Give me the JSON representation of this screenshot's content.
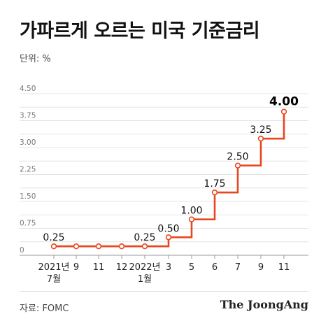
{
  "title": "가파르게 오르는 미국 기준금리",
  "unit_label": "단위: %",
  "source": "자료: FOMC",
  "brand": "The JoongAng",
  "chart_data": {
    "type": "line",
    "step": true,
    "x": [
      "2021년 7월",
      "9",
      "11",
      "12",
      "2022년 1월",
      "3",
      "5",
      "6",
      "7",
      "9",
      "11"
    ],
    "x_tick_lines": [
      [
        "2021년",
        "7월"
      ],
      [
        "9"
      ],
      [
        "11"
      ],
      [
        "12"
      ],
      [
        "2022년",
        "1월"
      ],
      [
        "3"
      ],
      [
        "5"
      ],
      [
        "6"
      ],
      [
        "7"
      ],
      [
        "9"
      ],
      [
        "11"
      ]
    ],
    "y": [
      0.25,
      0.25,
      0.25,
      0.25,
      0.25,
      0.5,
      1.0,
      1.75,
      2.5,
      3.25,
      4.0
    ],
    "data_labels": [
      {
        "index": 0,
        "text": "0.25"
      },
      {
        "index": 4,
        "text": "0.25"
      },
      {
        "index": 5,
        "text": "0.50"
      },
      {
        "index": 6,
        "text": "1.00"
      },
      {
        "index": 7,
        "text": "1.75"
      },
      {
        "index": 8,
        "text": "2.50"
      },
      {
        "index": 9,
        "text": "3.25"
      },
      {
        "index": 10,
        "text": "4.00"
      }
    ],
    "y_ticks": [
      "0",
      "0.75",
      "1.50",
      "2.25",
      "3.00",
      "3.75",
      "4.50"
    ],
    "y_minor_ticks": [
      "0.375",
      "1.125",
      "1.875",
      "2.625",
      "3.375",
      "4.125"
    ],
    "ylim": [
      0,
      4.5
    ],
    "grid": true,
    "line_color": "#e8461e",
    "marker_fill": "#ffffff"
  }
}
